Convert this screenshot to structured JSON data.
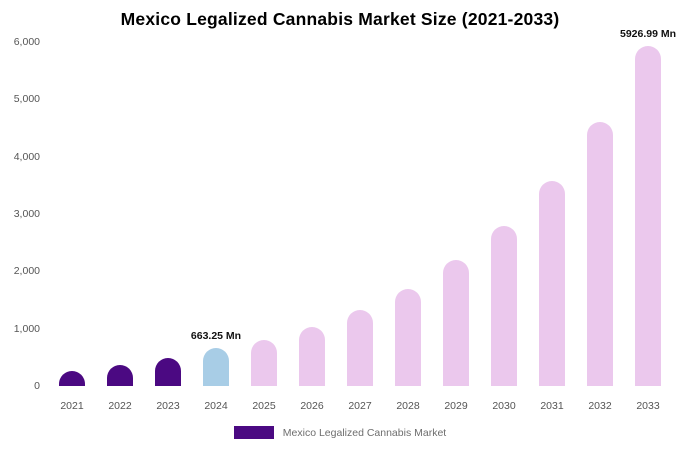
{
  "title": "Mexico Legalized Cannabis Market Size (2021-2033)",
  "legend": {
    "label": "Mexico Legalized Cannabis Market",
    "swatch_color": "#4b0982"
  },
  "y_axis": {
    "ticks": [
      {
        "label": "0",
        "value": 0
      },
      {
        "label": "1,000",
        "value": 1000
      },
      {
        "label": "2,000",
        "value": 2000
      },
      {
        "label": "3,000",
        "value": 3000
      },
      {
        "label": "4,000",
        "value": 4000
      },
      {
        "label": "5,000",
        "value": 5000
      },
      {
        "label": "6,000",
        "value": 6000
      }
    ]
  },
  "chart_data": {
    "type": "bar",
    "title": "Mexico Legalized Cannabis Market Size (2021-2033)",
    "unit": "Mn",
    "categories": [
      "2021",
      "2022",
      "2023",
      "2024",
      "2025",
      "2026",
      "2027",
      "2028",
      "2029",
      "2030",
      "2031",
      "2032",
      "2033"
    ],
    "values": [
      270,
      370,
      490,
      663.25,
      800,
      1030,
      1320,
      1700,
      2200,
      2800,
      3580,
      4600,
      5926.99
    ],
    "bar_colors": [
      "#4b0982",
      "#4b0982",
      "#4b0982",
      "#a8cde6",
      "#ebc8ed",
      "#ebc8ed",
      "#ebc8ed",
      "#ebc8ed",
      "#ebc8ed",
      "#ebc8ed",
      "#ebc8ed",
      "#ebc8ed",
      "#ebc8ed"
    ],
    "annotations": [
      {
        "category": "2024",
        "label": "663.25 Mn"
      },
      {
        "category": "2033",
        "label": "5926.99 Mn"
      }
    ],
    "ylim": [
      0,
      6000
    ],
    "xlabel": "",
    "ylabel": "",
    "grid": false,
    "legend_position": "bottom",
    "series_name": "Mexico Legalized Cannabis Market"
  }
}
